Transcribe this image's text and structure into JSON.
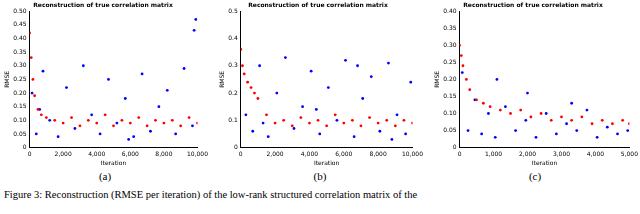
{
  "chart_data": [
    {
      "type": "scatter",
      "label": "(a)",
      "title": "Reconstruction of true correlation matrix",
      "x_label": "Iteration",
      "y_label": "RMSE",
      "grid": false,
      "xlim": [
        0,
        10000
      ],
      "xticks": [
        0,
        2000,
        4000,
        6000,
        8000,
        10000
      ],
      "ylim": [
        0,
        0.5
      ],
      "yticks": [
        0,
        0.05,
        0.1,
        0.15,
        0.2,
        0.25,
        0.3,
        0.35,
        0.4,
        0.45,
        0.5
      ],
      "series": [
        {
          "color": "#ff0000",
          "x": [
            0,
            100,
            200,
            300,
            500,
            700,
            1000,
            1500,
            2000,
            2500,
            3000,
            3500,
            4000,
            4500,
            5000,
            5500,
            6000,
            6500,
            7000,
            7500,
            8000,
            8500,
            9000,
            9500,
            10000
          ],
          "values": [
            0.42,
            0.33,
            0.25,
            0.19,
            0.14,
            0.12,
            0.11,
            0.1,
            0.09,
            0.11,
            0.08,
            0.1,
            0.09,
            0.12,
            0.08,
            0.1,
            0.09,
            0.11,
            0.08,
            0.1,
            0.09,
            0.1,
            0.08,
            0.11,
            0.09
          ]
        },
        {
          "color": "#0000ff",
          "x": [
            150,
            400,
            800,
            1200,
            1700,
            2200,
            2700,
            3200,
            3700,
            4200,
            4700,
            5200,
            5700,
            6200,
            6700,
            7200,
            7700,
            8200,
            8700,
            9200,
            9700,
            9900,
            600,
            5900,
            9800
          ],
          "values": [
            0.2,
            0.05,
            0.28,
            0.1,
            0.04,
            0.22,
            0.07,
            0.3,
            0.12,
            0.05,
            0.25,
            0.09,
            0.18,
            0.04,
            0.27,
            0.06,
            0.15,
            0.21,
            0.05,
            0.29,
            0.08,
            0.47,
            0.14,
            0.03,
            0.43
          ]
        }
      ]
    },
    {
      "type": "scatter",
      "label": "(b)",
      "title": "Reconstruction of true correlation matrix",
      "x_label": "Iteration",
      "y_label": "RMSE",
      "grid": false,
      "xlim": [
        0,
        10000
      ],
      "xticks": [
        0,
        2000,
        4000,
        6000,
        8000,
        10000
      ],
      "ylim": [
        0,
        0.5
      ],
      "yticks": [
        0,
        0.1,
        0.2,
        0.3,
        0.4,
        0.5
      ],
      "series": [
        {
          "color": "#ff0000",
          "x": [
            0,
            100,
            200,
            400,
            600,
            800,
            1000,
            1500,
            2000,
            2500,
            3000,
            3500,
            4000,
            4500,
            5000,
            5500,
            6000,
            6500,
            7000,
            7500,
            8000,
            8500,
            9000,
            9500,
            10000
          ],
          "values": [
            0.36,
            0.3,
            0.27,
            0.24,
            0.22,
            0.2,
            0.18,
            0.12,
            0.09,
            0.1,
            0.08,
            0.11,
            0.09,
            0.1,
            0.08,
            0.12,
            0.09,
            0.1,
            0.08,
            0.11,
            0.09,
            0.1,
            0.08,
            0.1,
            0.09
          ]
        },
        {
          "color": "#0000ff",
          "x": [
            300,
            700,
            1100,
            1600,
            2100,
            2600,
            3100,
            3600,
            4100,
            4600,
            5100,
            5600,
            6100,
            6600,
            7100,
            7600,
            8100,
            8600,
            9100,
            9600,
            9900,
            1300,
            4400,
            6800,
            8800
          ],
          "values": [
            0.12,
            0.06,
            0.3,
            0.04,
            0.2,
            0.33,
            0.07,
            0.15,
            0.28,
            0.05,
            0.22,
            0.1,
            0.32,
            0.04,
            0.18,
            0.26,
            0.06,
            0.31,
            0.12,
            0.05,
            0.24,
            0.09,
            0.14,
            0.3,
            0.03
          ]
        }
      ]
    },
    {
      "type": "scatter",
      "label": "(c)",
      "title": "Reconstruction of true correlation matrix",
      "x_label": "Iteration",
      "y_label": "RMSE",
      "grid": false,
      "xlim": [
        0,
        5000
      ],
      "xticks": [
        0,
        1000,
        2000,
        3000,
        4000,
        5000
      ],
      "ylim": [
        0,
        0.4
      ],
      "yticks": [
        0,
        0.05,
        0.1,
        0.15,
        0.2,
        0.25,
        0.3,
        0.35,
        0.4
      ],
      "series": [
        {
          "color": "#ff0000",
          "x": [
            0,
            50,
            100,
            200,
            300,
            500,
            700,
            900,
            1200,
            1500,
            1800,
            2100,
            2400,
            2700,
            3000,
            3300,
            3600,
            3900,
            4200,
            4500,
            4800,
            5000
          ],
          "values": [
            0.3,
            0.27,
            0.24,
            0.2,
            0.17,
            0.14,
            0.13,
            0.12,
            0.11,
            0.1,
            0.11,
            0.09,
            0.1,
            0.08,
            0.09,
            0.08,
            0.09,
            0.07,
            0.08,
            0.07,
            0.08,
            0.07
          ]
        },
        {
          "color": "#0000ff",
          "x": [
            80,
            250,
            450,
            650,
            850,
            1050,
            1350,
            1650,
            1950,
            2250,
            2550,
            2850,
            3150,
            3450,
            3750,
            4050,
            4350,
            4650,
            4950,
            1100,
            2000,
            3300
          ],
          "values": [
            0.22,
            0.05,
            0.14,
            0.04,
            0.1,
            0.03,
            0.12,
            0.05,
            0.08,
            0.03,
            0.1,
            0.04,
            0.07,
            0.05,
            0.11,
            0.03,
            0.06,
            0.04,
            0.05,
            0.2,
            0.16,
            0.13
          ]
        }
      ]
    }
  ],
  "caption": "Figure 3: Reconstruction (RMSE per iteration) of the low-rank structured correlation matrix of the"
}
